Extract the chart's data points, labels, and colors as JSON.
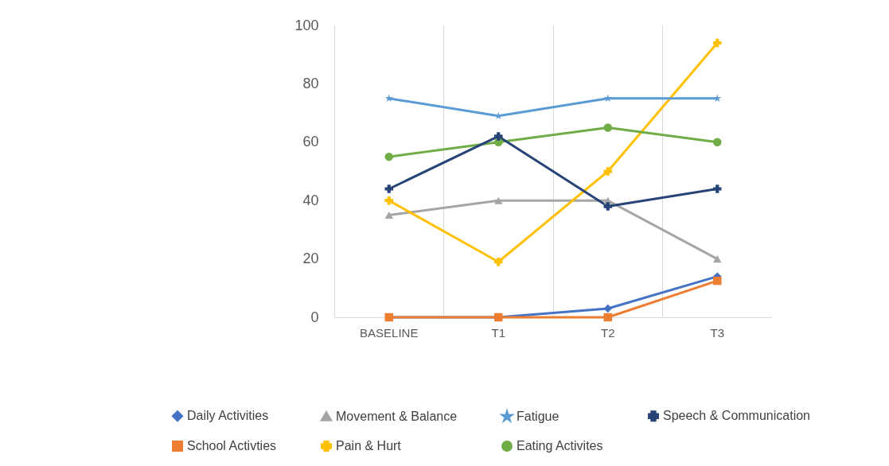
{
  "chart_data": {
    "type": "line",
    "categories": [
      "BASELINE",
      "T1",
      "T2",
      "T3"
    ],
    "ylim": [
      0,
      100
    ],
    "yticks": [
      0,
      20,
      40,
      60,
      80,
      100
    ],
    "grid": "x",
    "legend": "bottom",
    "line_style": "solid",
    "series": [
      {
        "name": "Daily Activities",
        "color": "#4472c4",
        "marker": "diamond",
        "values": [
          0,
          0,
          3,
          14
        ]
      },
      {
        "name": "School Activties",
        "color": "#ed7d31",
        "marker": "square",
        "values": [
          0,
          0,
          0,
          12.5
        ]
      },
      {
        "name": "Movement & Balance",
        "color": "#a5a5a5",
        "marker": "triangle",
        "values": [
          35,
          40,
          40,
          20
        ]
      },
      {
        "name": "Pain & Hurt",
        "color": "#ffc000",
        "marker": "cross",
        "values": [
          40,
          19,
          50,
          94
        ]
      },
      {
        "name": "Fatigue",
        "color": "#5b9bd5",
        "marker": "star",
        "values": [
          75,
          69,
          75,
          75
        ]
      },
      {
        "name": "Eating Activites",
        "color": "#70ad47",
        "marker": "circle",
        "values": [
          55,
          60,
          65,
          60
        ]
      },
      {
        "name": "Speech & Communication",
        "color": "#264478",
        "marker": "cross",
        "values": [
          44,
          62,
          38,
          44
        ]
      }
    ]
  }
}
